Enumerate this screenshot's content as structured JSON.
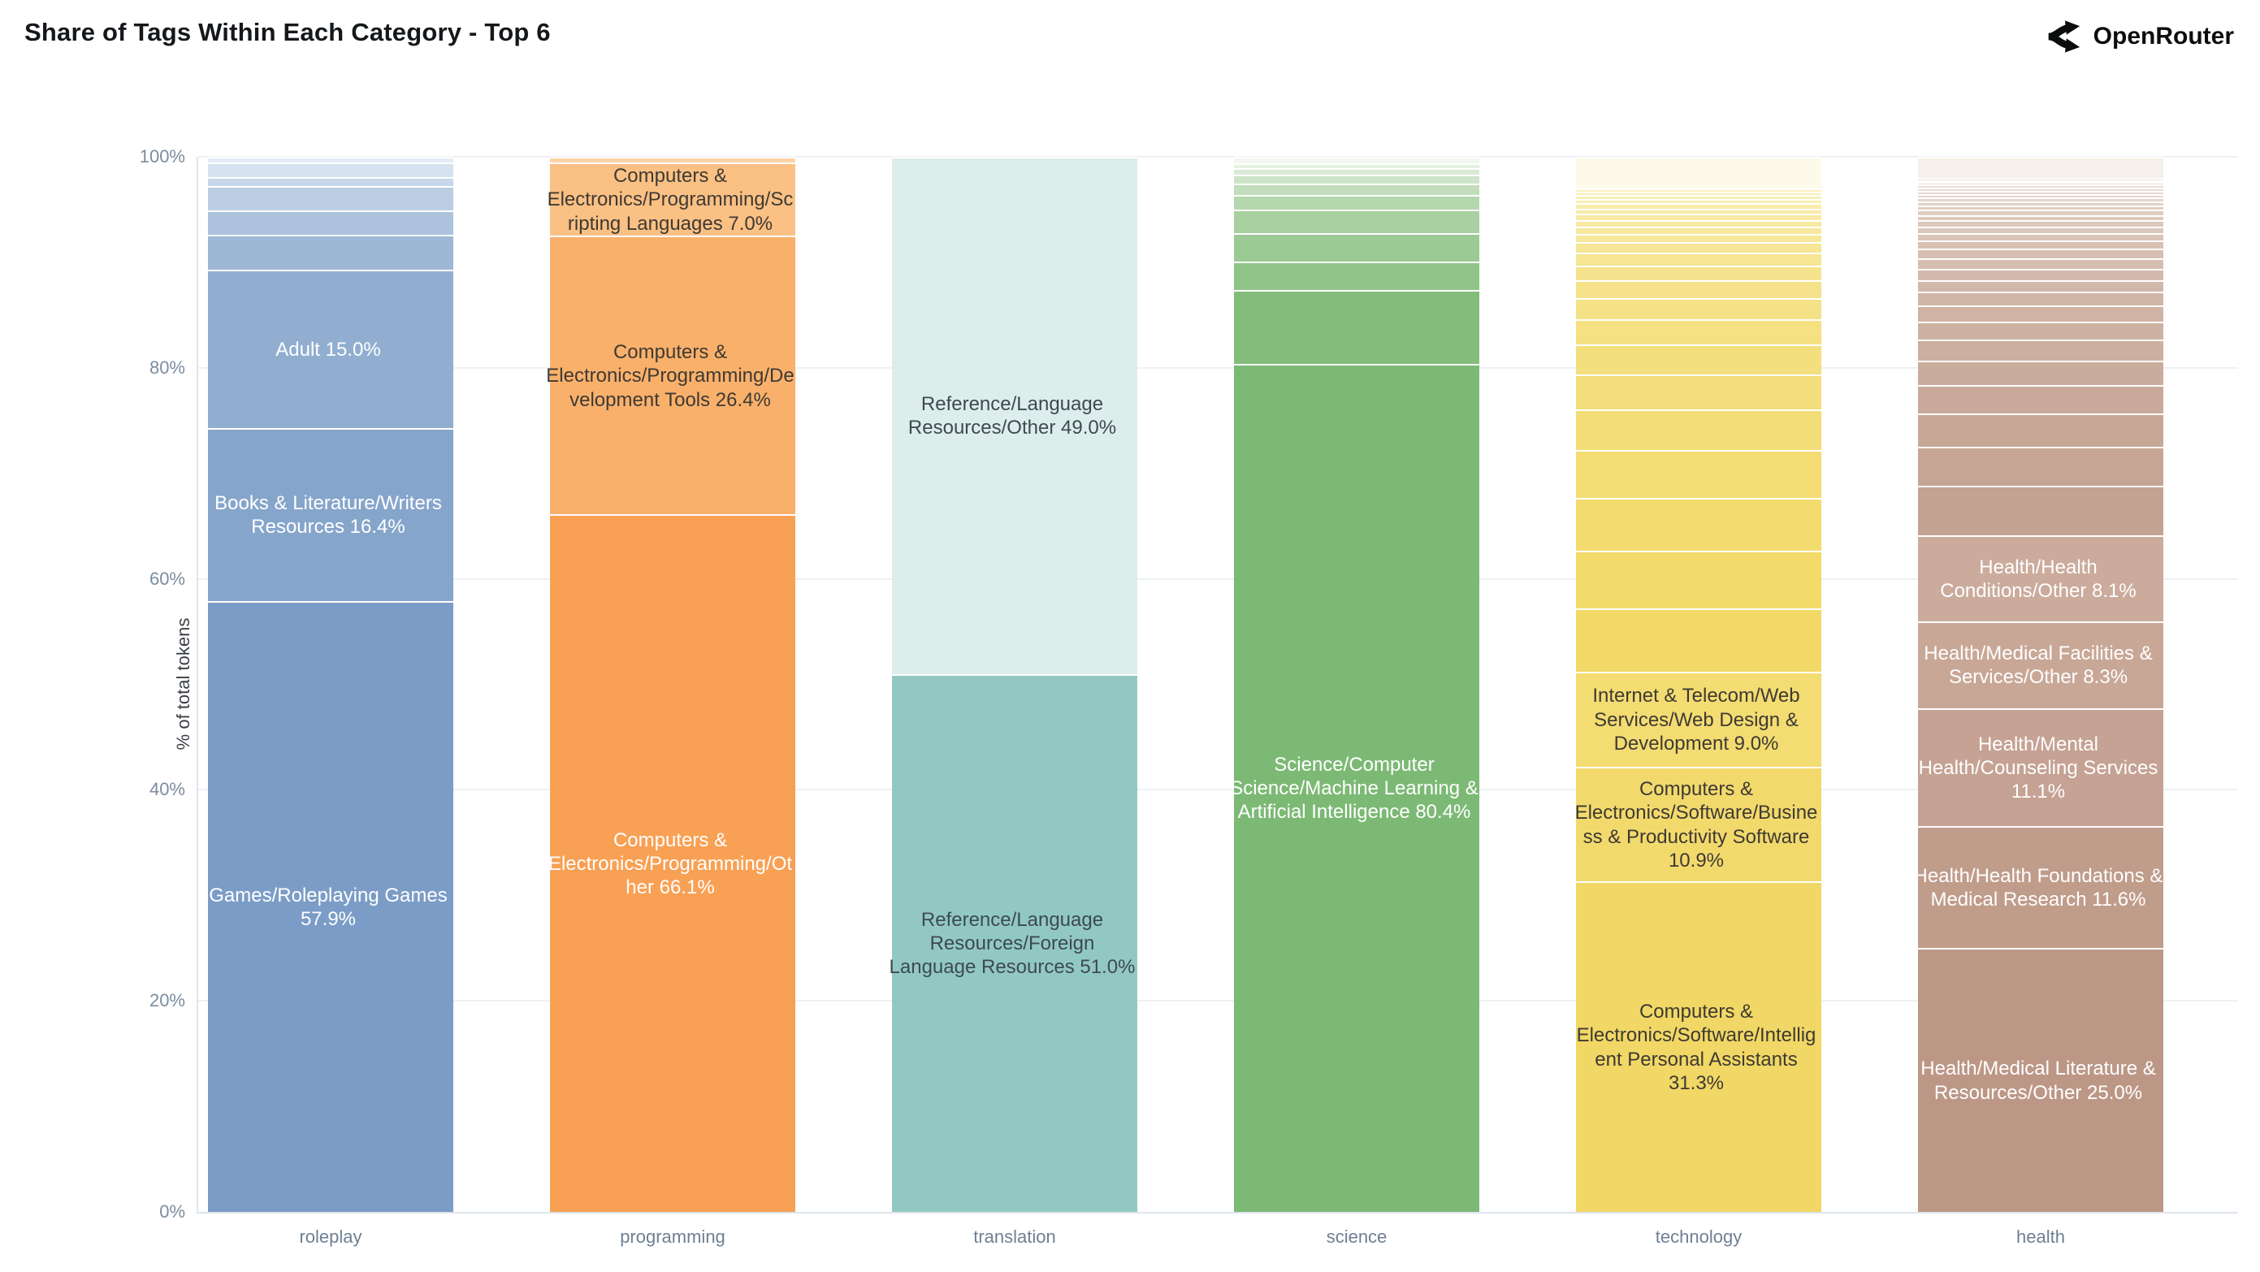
{
  "header": {
    "brand": "OpenRouter",
    "brand_icon": "openrouter-fork-icon"
  },
  "y_axis": {
    "ticks": [
      {
        "value": 100,
        "label": "100%"
      },
      {
        "value": 80,
        "label": "80%"
      },
      {
        "value": 60,
        "label": "60%"
      },
      {
        "value": 40,
        "label": "40%"
      },
      {
        "value": 20,
        "label": "20%"
      },
      {
        "value": 0,
        "label": "0%"
      }
    ]
  },
  "chart_data": {
    "type": "bar",
    "stacked": true,
    "normalized": "percent",
    "title": "Share of Tags Within Each Category - Top 6",
    "xlabel": "",
    "ylabel": "% of total tokens",
    "ylim": [
      0,
      100
    ],
    "grid": "horizontal",
    "legend": "none",
    "categories": [
      "roleplay",
      "programming",
      "translation",
      "science",
      "technology",
      "health"
    ],
    "bars": [
      {
        "category": "roleplay",
        "stripe_color_top": "#e4edf6",
        "stripe_color_bottom": "#9fb7d6",
        "segments": [
          {
            "value": 0.5
          },
          {
            "value": 1.4
          },
          {
            "value": 0.9
          },
          {
            "value": 2.3
          },
          {
            "value": 2.3
          },
          {
            "value": 3.3
          },
          {
            "label": "Adult 15.0%",
            "value": 15.0,
            "color": "#91aed1",
            "text_color": "#ffffff"
          },
          {
            "label": "Books & Literature/Writers Resources 16.4%",
            "value": 16.4,
            "color": "#86a5cb",
            "text_color": "#ffffff"
          },
          {
            "label": "Games/Roleplaying Games 57.9%",
            "value": 57.9,
            "color": "#7b9cc6",
            "text_color": "#ffffff"
          }
        ]
      },
      {
        "category": "programming",
        "stripe_color_top": "#fcd3a6",
        "stripe_color_bottom": "#fcd3a6",
        "segments": [
          {
            "value": 0.5
          },
          {
            "label": "Computers & Electronics/Programming/Scripting Languages 7.0%",
            "value": 7.0,
            "color": "#fac084",
            "text_color": "#3e3a33"
          },
          {
            "label": "Computers & Electronics/Programming/Development Tools 26.4%",
            "value": 26.4,
            "color": "#f9b06b",
            "text_color": "#3e3a33"
          },
          {
            "label": "Computers & Electronics/Programming/Other 66.1%",
            "value": 66.1,
            "color": "#f8a054",
            "text_color": "#ffffff"
          }
        ]
      },
      {
        "category": "translation",
        "stripe_color_top": "#ddedeb",
        "stripe_color_bottom": "#ddedeb",
        "segments": [
          {
            "label": "Reference/Language Resources/Other 49.0%",
            "value": 49.0,
            "color": "#ddedeb",
            "text_color": "#3d4a52"
          },
          {
            "label": "Reference/Language Resources/Foreign Language Resources 51.0%",
            "value": 51.0,
            "color": "#92c8c3",
            "text_color": "#3d4a52"
          }
        ]
      },
      {
        "category": "science",
        "stripe_color_top": "#f1f7ee",
        "stripe_color_bottom": "#84bd7b",
        "segments": [
          {
            "value": 0.6
          },
          {
            "value": 0.5
          },
          {
            "value": 0.6
          },
          {
            "value": 0.8
          },
          {
            "value": 1.1
          },
          {
            "value": 1.4
          },
          {
            "value": 2.2
          },
          {
            "value": 2.7
          },
          {
            "value": 2.7
          },
          {
            "value": 7.0
          },
          {
            "label": "Science/Computer Science/Machine Learning & Artificial Intelligence 80.4%",
            "value": 80.4,
            "color": "#7cb975",
            "text_color": "#ffffff"
          }
        ]
      },
      {
        "category": "technology",
        "stripe_color_top": "#faf0bd",
        "stripe_color_bottom": "#f2d967",
        "segments": [
          {
            "value": 3.0,
            "color": "#fdfaea"
          },
          {
            "value": 0.3
          },
          {
            "value": 0.3
          },
          {
            "value": 0.4
          },
          {
            "value": 0.4
          },
          {
            "value": 0.5
          },
          {
            "value": 0.5
          },
          {
            "value": 0.6
          },
          {
            "value": 0.6
          },
          {
            "value": 0.7
          },
          {
            "value": 0.8
          },
          {
            "value": 1.0
          },
          {
            "value": 1.2
          },
          {
            "value": 1.4
          },
          {
            "value": 1.7
          },
          {
            "value": 2.0
          },
          {
            "value": 2.4
          },
          {
            "value": 2.8
          },
          {
            "value": 3.3
          },
          {
            "value": 3.9
          },
          {
            "value": 4.5
          },
          {
            "value": 5.0
          },
          {
            "value": 5.5
          },
          {
            "value": 6.0
          },
          {
            "label": "Internet & Telecom/Web Services/Web Design & Development 9.0%",
            "value": 9.0,
            "color": "#f3dc72",
            "text_color": "#3e3a33"
          },
          {
            "label": "Computers & Electronics/Software/Business & Productivity Software 10.9%",
            "value": 10.9,
            "color": "#f2d96c",
            "text_color": "#3e3a33"
          },
          {
            "label": "Computers & Electronics/Software/Intelligent Personal Assistants 31.3%",
            "value": 31.3,
            "color": "#f1d765",
            "text_color": "#3e3a33"
          }
        ]
      },
      {
        "category": "health",
        "stripe_color_top": "#eee4dc",
        "stripe_color_bottom": "#c4a392",
        "segments": [
          {
            "value": 2.0,
            "color": "#f5f0e9"
          },
          {
            "value": 0.2
          },
          {
            "value": 0.2
          },
          {
            "value": 0.2
          },
          {
            "value": 0.3
          },
          {
            "value": 0.3
          },
          {
            "value": 0.3
          },
          {
            "value": 0.3
          },
          {
            "value": 0.4
          },
          {
            "value": 0.4
          },
          {
            "value": 0.4
          },
          {
            "value": 0.5
          },
          {
            "value": 0.5
          },
          {
            "value": 0.6
          },
          {
            "value": 0.6
          },
          {
            "value": 0.7
          },
          {
            "value": 0.8
          },
          {
            "value": 0.9
          },
          {
            "value": 1.0
          },
          {
            "value": 1.1
          },
          {
            "value": 1.1
          },
          {
            "value": 1.3
          },
          {
            "value": 1.5
          },
          {
            "value": 1.7
          },
          {
            "value": 2.0
          },
          {
            "value": 2.3
          },
          {
            "value": 2.7
          },
          {
            "value": 3.2
          },
          {
            "value": 3.7
          },
          {
            "value": 4.7
          },
          {
            "label": "Health/Health Conditions/Other 8.1%",
            "value": 8.1,
            "color": "#cbab9c",
            "text_color": "#ffffff"
          },
          {
            "label": "Health/Medical Facilities & Services/Other 8.3%",
            "value": 8.3,
            "color": "#c8a797",
            "text_color": "#ffffff"
          },
          {
            "label": "Health/Mental Health/Counseling Services 11.1%",
            "value": 11.1,
            "color": "#c5a293",
            "text_color": "#ffffff"
          },
          {
            "label": "Health/Health Foundations & Medical Research 11.6%",
            "value": 11.6,
            "color": "#c09c8b",
            "text_color": "#ffffff"
          },
          {
            "label": "Health/Medical Literature & Resources/Other 25.0%",
            "value": 25.0,
            "color": "#bc9786",
            "text_color": "#ffffff"
          }
        ]
      }
    ]
  }
}
